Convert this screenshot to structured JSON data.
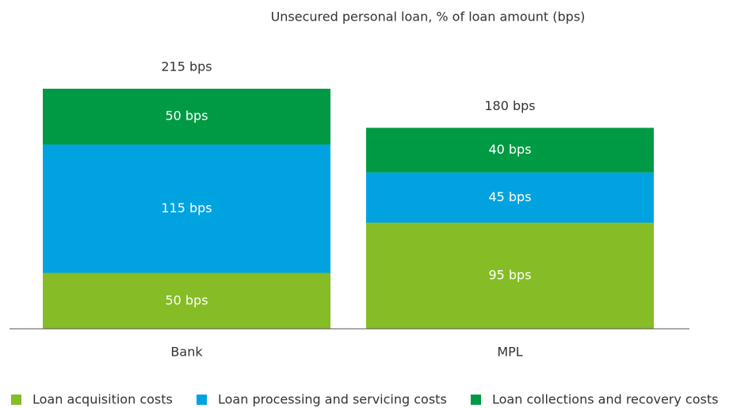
{
  "chart_data": {
    "type": "stacked_bar",
    "title": "Unsecured personal loan, % of loan amount (bps)",
    "categories": [
      "Bank",
      "MPL"
    ],
    "series": [
      {
        "name": "Loan acquisition costs",
        "color": "#86bc25",
        "values": [
          50,
          95
        ],
        "value_labels": [
          "50 bps",
          "95 bps"
        ]
      },
      {
        "name": "Loan processing and servicing costs",
        "color": "#00a3e0",
        "values": [
          115,
          45
        ],
        "value_labels": [
          "115 bps",
          "45 bps"
        ]
      },
      {
        "name": "Loan collections and recovery costs",
        "color": "#009a44",
        "values": [
          50,
          40
        ],
        "value_labels": [
          "50 bps",
          "40 bps"
        ]
      }
    ],
    "totals": [
      215,
      180
    ],
    "total_labels": [
      "215 bps",
      "180 bps"
    ],
    "legend": "bottom"
  }
}
